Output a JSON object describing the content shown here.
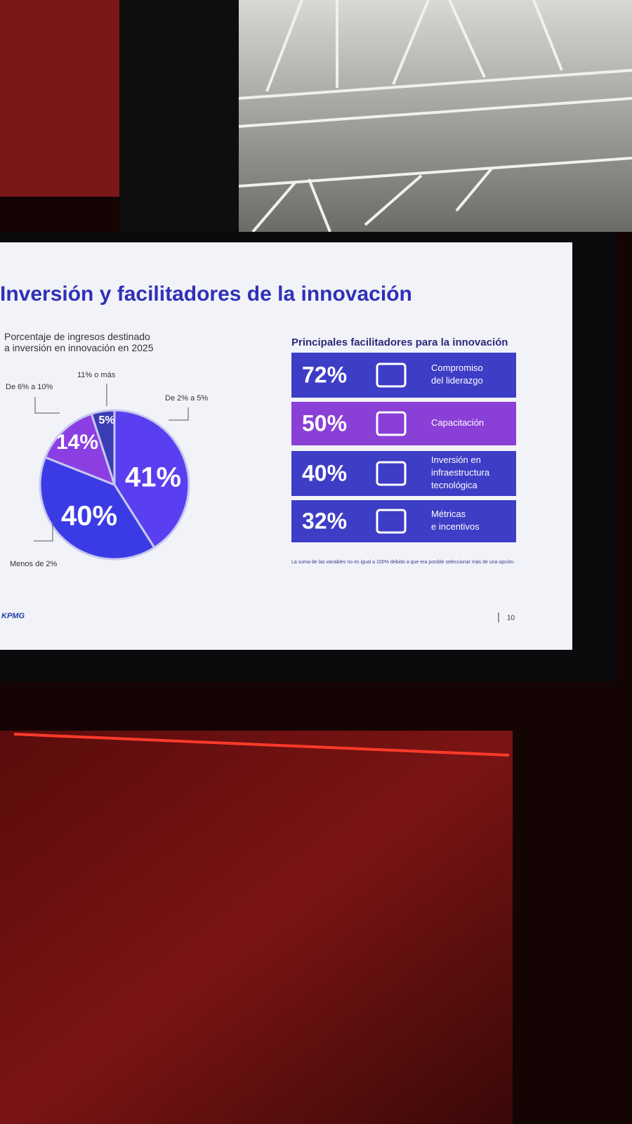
{
  "chart_data": {
    "type": "pie",
    "title": "Porcentaje de ingresos destinado a inversión en innovación en 2025",
    "categories": [
      "De 2% a 5%",
      "Menos de 2%",
      "De 6% a 10%",
      "11% o más"
    ],
    "values": [
      41,
      40,
      14,
      5
    ],
    "value_labels": [
      "41%",
      "40%",
      "14%",
      "5%"
    ],
    "colors": [
      "#5a3ff0",
      "#3b3be6",
      "#8b3fe2",
      "#3a3db4"
    ]
  },
  "slide": {
    "title": "Inversión y facilitadores de la innovación",
    "logo": "KPMG",
    "page": "10",
    "footnote": "La suma de las variables no es igual a 100% debido a que era posible seleccionar más de una opción."
  },
  "facilitators": {
    "title": "Principales facilitadores para la innovación",
    "items": [
      {
        "value": "72%",
        "label": "Compromiso del liderazgo",
        "color": "#3d3dc6"
      },
      {
        "value": "50%",
        "label": "Capacitación",
        "color": "#8a3fd6"
      },
      {
        "value": "40%",
        "label": "Inversión en infraestructura tecnológica",
        "color": "#3d3dc6"
      },
      {
        "value": "32%",
        "label": "Métricas e incentivos",
        "color": "#3d3dc6"
      }
    ]
  }
}
